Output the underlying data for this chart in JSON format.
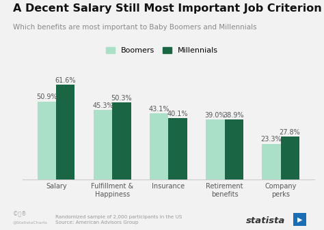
{
  "title": "A Decent Salary Still Most Important Job Criterion",
  "subtitle": "Which benefits are most important to Baby Boomers and Millennials",
  "categories": [
    "Salary",
    "Fulfillment &\nHappiness",
    "Insurance",
    "Retirement\nbenefits",
    "Company\nperks"
  ],
  "boomers": [
    50.9,
    45.3,
    43.1,
    39.0,
    23.3
  ],
  "millennials": [
    61.6,
    50.3,
    40.1,
    38.9,
    27.8
  ],
  "boomer_color": "#aadfc8",
  "millennial_color": "#1a6644",
  "bg_color": "#f2f2f2",
  "title_fontsize": 11.5,
  "subtitle_fontsize": 7.5,
  "label_fontsize": 7,
  "tick_fontsize": 7,
  "bar_width": 0.33,
  "ylim": [
    0,
    72
  ],
  "footer_text": "Randomized sample of 2,000 participants in the US\nSource: American Advisors Group",
  "legend_labels": [
    "Boomers",
    "Millennials"
  ]
}
